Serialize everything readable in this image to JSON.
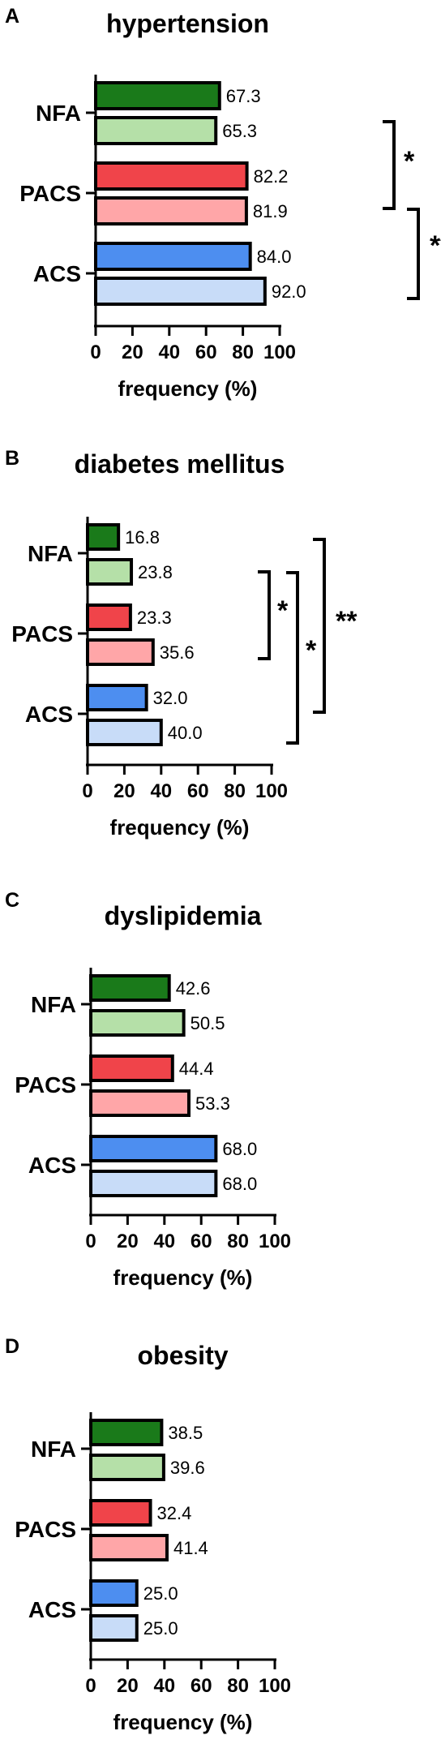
{
  "chart_data": [
    {
      "type": "bar",
      "panel": "A",
      "title": "hypertension",
      "xlabel": "frequency (%)",
      "ylabel": "",
      "orientation": "horizontal",
      "xlim": [
        0,
        100
      ],
      "xticks": [
        "0",
        "20",
        "40",
        "60",
        "80",
        "100"
      ],
      "categories": [
        "NFA",
        "PACS",
        "ACS"
      ],
      "bar_colors": [
        [
          "#1a7a1a",
          "#b5e0a8"
        ],
        [
          "#f0444a",
          "#ffa6a8"
        ],
        [
          "#4d8ef0",
          "#c8dcf8"
        ]
      ],
      "values": [
        [
          67.3,
          65.3
        ],
        [
          82.2,
          81.9
        ],
        [
          84.0,
          92.0
        ]
      ],
      "value_labels": [
        [
          "67.3",
          "65.3"
        ],
        [
          "82.2",
          "81.9"
        ],
        [
          "84.0",
          "92.0"
        ]
      ],
      "significance": [
        {
          "label": "*",
          "from": "NFA",
          "to": "PACS"
        },
        {
          "label": "**",
          "from": "PACS",
          "to": "ACS"
        }
      ]
    },
    {
      "type": "bar",
      "panel": "B",
      "title": "diabetes mellitus",
      "xlabel": "frequency (%)",
      "ylabel": "",
      "orientation": "horizontal",
      "xlim": [
        0,
        100
      ],
      "xticks": [
        "0",
        "20",
        "40",
        "60",
        "80",
        "100"
      ],
      "categories": [
        "NFA",
        "PACS",
        "ACS"
      ],
      "bar_colors": [
        [
          "#1a7a1a",
          "#b5e0a8"
        ],
        [
          "#f0444a",
          "#ffa6a8"
        ],
        [
          "#4d8ef0",
          "#c8dcf8"
        ]
      ],
      "values": [
        [
          16.8,
          23.8
        ],
        [
          23.3,
          35.6
        ],
        [
          32.0,
          40.0
        ]
      ],
      "value_labels": [
        [
          "16.8",
          "23.8"
        ],
        [
          "23.3",
          "35.6"
        ],
        [
          "32.0",
          "40.0"
        ]
      ],
      "significance": [
        {
          "label": "*",
          "from": "NFA",
          "to": "PACS"
        },
        {
          "label": "*",
          "from": "NFA",
          "to": "ACS"
        },
        {
          "label": "**",
          "from": "NFA",
          "to": "ACS"
        }
      ]
    },
    {
      "type": "bar",
      "panel": "C",
      "title": "dyslipidemia",
      "xlabel": "frequency (%)",
      "ylabel": "",
      "orientation": "horizontal",
      "xlim": [
        0,
        100
      ],
      "xticks": [
        "0",
        "20",
        "40",
        "60",
        "80",
        "100"
      ],
      "categories": [
        "NFA",
        "PACS",
        "ACS"
      ],
      "bar_colors": [
        [
          "#1a7a1a",
          "#b5e0a8"
        ],
        [
          "#f0444a",
          "#ffa6a8"
        ],
        [
          "#4d8ef0",
          "#c8dcf8"
        ]
      ],
      "values": [
        [
          42.6,
          50.5
        ],
        [
          44.4,
          53.3
        ],
        [
          68.0,
          68.0
        ]
      ],
      "value_labels": [
        [
          "42.6",
          "50.5"
        ],
        [
          "44.4",
          "53.3"
        ],
        [
          "68.0",
          "68.0"
        ]
      ],
      "significance": []
    },
    {
      "type": "bar",
      "panel": "D",
      "title": "obesity",
      "xlabel": "frequency (%)",
      "ylabel": "",
      "orientation": "horizontal",
      "xlim": [
        0,
        100
      ],
      "xticks": [
        "0",
        "20",
        "40",
        "60",
        "80",
        "100"
      ],
      "categories": [
        "NFA",
        "PACS",
        "ACS"
      ],
      "bar_colors": [
        [
          "#1a7a1a",
          "#b5e0a8"
        ],
        [
          "#f0444a",
          "#ffa6a8"
        ],
        [
          "#4d8ef0",
          "#c8dcf8"
        ]
      ],
      "values": [
        [
          38.5,
          39.6
        ],
        [
          32.4,
          41.4
        ],
        [
          25.0,
          25.0
        ]
      ],
      "value_labels": [
        [
          "38.5",
          "39.6"
        ],
        [
          "32.4",
          "41.4"
        ],
        [
          "25.0",
          "25.0"
        ]
      ],
      "significance": []
    }
  ]
}
